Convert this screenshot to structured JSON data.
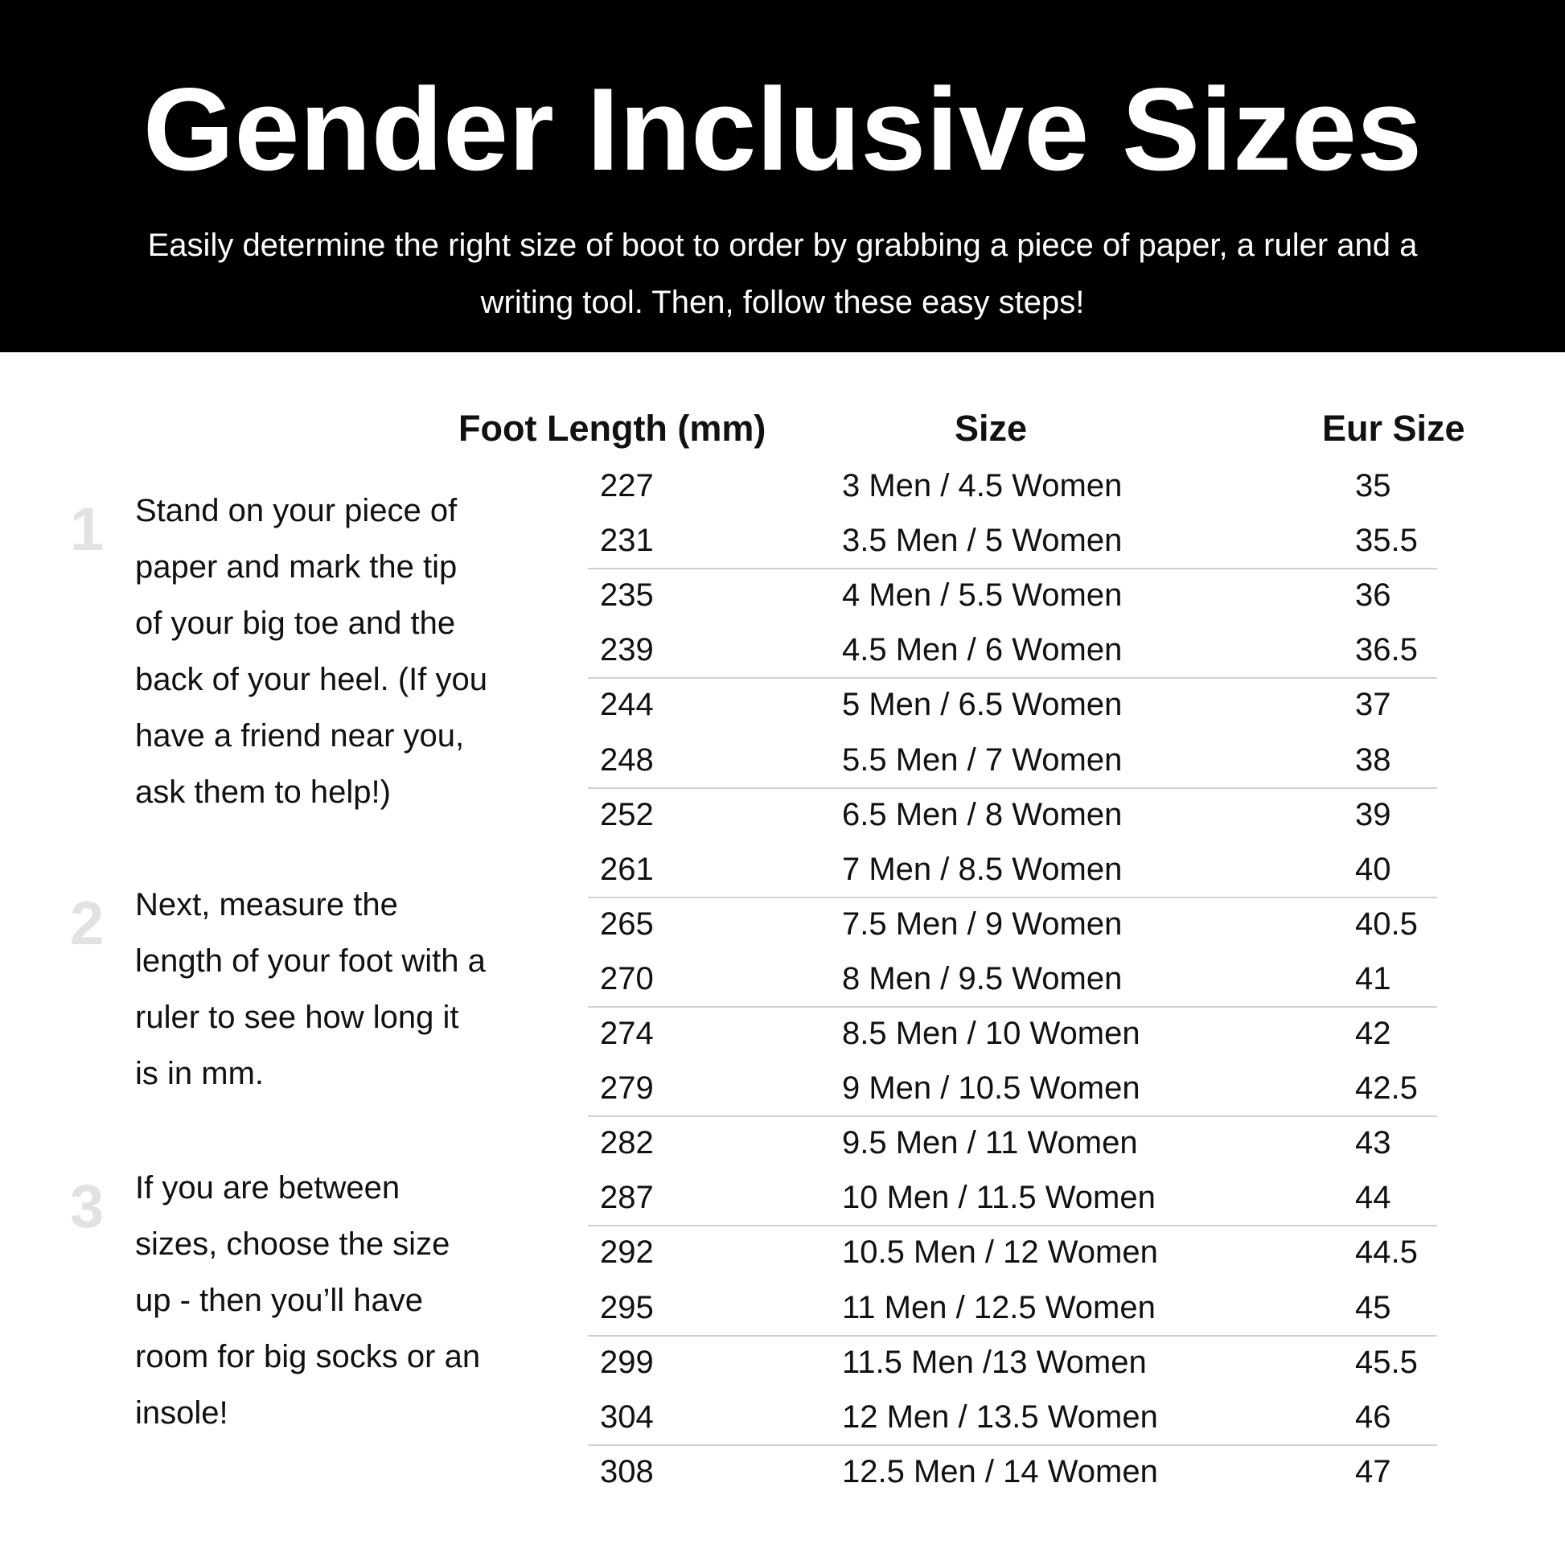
{
  "header": {
    "title": "Gender Inclusive Sizes",
    "subtitle": [
      "Easily determine the right size of boot to order by grabbing a piece of paper, a ruler and a",
      "writing tool. Then, follow these easy steps!"
    ]
  },
  "steps": [
    {
      "number": 1,
      "lines": [
        "Stand on your piece of",
        "paper and mark the tip",
        "of your big toe and the",
        "back of your heel. (If you",
        "have a friend near you,",
        "ask them to help!)"
      ]
    },
    {
      "number": 2,
      "lines": [
        "Next, measure the",
        "length of your foot with a",
        "ruler to see how long it",
        "is in mm."
      ]
    },
    {
      "number": 3,
      "lines": [
        "If you are between",
        "sizes, choose the size",
        "up - then you’ll have",
        "room for big socks or an",
        "insole!"
      ]
    }
  ],
  "table": {
    "columns": [
      "Foot Length (mm)",
      "Size",
      "Eur Size"
    ],
    "rows": [
      [
        227,
        "3 Men / 4.5 Women",
        35
      ],
      [
        231,
        "3.5 Men / 5 Women",
        35.5
      ],
      [
        235,
        "4 Men / 5.5 Women",
        36
      ],
      [
        239,
        "4.5 Men / 6 Women",
        36.5
      ],
      [
        244,
        "5 Men / 6.5 Women",
        37
      ],
      [
        248,
        "5.5 Men / 7 Women",
        38
      ],
      [
        252,
        "6.5 Men / 8 Women",
        39
      ],
      [
        261,
        "7 Men / 8.5 Women",
        40
      ],
      [
        265,
        "7.5 Men / 9 Women",
        40.5
      ],
      [
        270,
        "8 Men / 9.5 Women",
        41
      ],
      [
        274,
        "8.5 Men / 10 Women",
        42
      ],
      [
        279,
        "9 Men / 10.5 Women",
        42.5
      ],
      [
        282,
        "9.5 Men / 11 Women",
        43
      ],
      [
        287,
        "10 Men / 11.5 Women",
        44
      ],
      [
        292,
        "10.5 Men / 12 Women",
        44.5
      ],
      [
        295,
        "11 Men / 12.5 Women",
        45
      ],
      [
        299,
        "11.5 Men /13 Women",
        45.5
      ],
      [
        304,
        "12 Men / 13.5 Women",
        46
      ],
      [
        308,
        "12.5 Men / 14 Women",
        47
      ]
    ]
  }
}
